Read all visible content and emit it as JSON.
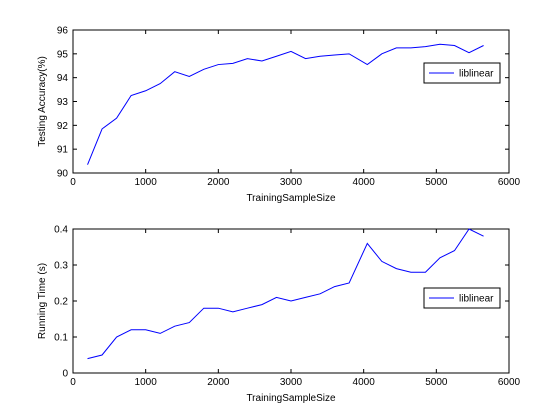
{
  "chart_data": [
    {
      "type": "line",
      "xlabel": "TrainingSampleSize",
      "ylabel": "Testing Accuracy(%)",
      "xlim": [
        0,
        6000
      ],
      "ylim": [
        90,
        96
      ],
      "xticks": [
        0,
        1000,
        2000,
        3000,
        4000,
        5000,
        6000
      ],
      "yticks": [
        90,
        91,
        92,
        93,
        94,
        95,
        96
      ],
      "grid": false,
      "legend_position": "right",
      "series": [
        {
          "name": "liblinear",
          "color": "#0000ff",
          "x": [
            200,
            400,
            600,
            800,
            1000,
            1200,
            1400,
            1600,
            1800,
            2000,
            2200,
            2400,
            2600,
            2800,
            3000,
            3200,
            3400,
            3600,
            3800,
            4050,
            4250,
            4450,
            4650,
            4850,
            5050,
            5250,
            5450,
            5650
          ],
          "y": [
            90.35,
            91.85,
            92.3,
            93.25,
            93.45,
            93.75,
            94.25,
            94.05,
            94.35,
            94.55,
            94.6,
            94.8,
            94.7,
            94.9,
            95.1,
            94.8,
            94.9,
            94.95,
            95.0,
            94.55,
            95.0,
            95.25,
            95.25,
            95.3,
            95.4,
            95.35,
            95.05,
            95.35
          ]
        }
      ]
    },
    {
      "type": "line",
      "xlabel": "TrainingSampleSize",
      "ylabel": "Running Time (s)",
      "xlim": [
        0,
        6000
      ],
      "ylim": [
        0,
        0.4
      ],
      "xticks": [
        0,
        1000,
        2000,
        3000,
        4000,
        5000,
        6000
      ],
      "yticks": [
        0,
        0.1,
        0.2,
        0.3,
        0.4
      ],
      "grid": false,
      "legend_position": "right",
      "series": [
        {
          "name": "liblinear",
          "color": "#0000ff",
          "x": [
            200,
            400,
            600,
            800,
            1000,
            1200,
            1400,
            1600,
            1800,
            2000,
            2200,
            2400,
            2600,
            2800,
            3000,
            3200,
            3400,
            3600,
            3800,
            4050,
            4250,
            4450,
            4650,
            4850,
            5050,
            5250,
            5450,
            5650
          ],
          "y": [
            0.04,
            0.05,
            0.1,
            0.12,
            0.12,
            0.11,
            0.13,
            0.14,
            0.18,
            0.18,
            0.17,
            0.18,
            0.19,
            0.21,
            0.2,
            0.21,
            0.22,
            0.24,
            0.25,
            0.36,
            0.31,
            0.29,
            0.28,
            0.28,
            0.32,
            0.34,
            0.4,
            0.38
          ]
        }
      ]
    }
  ]
}
